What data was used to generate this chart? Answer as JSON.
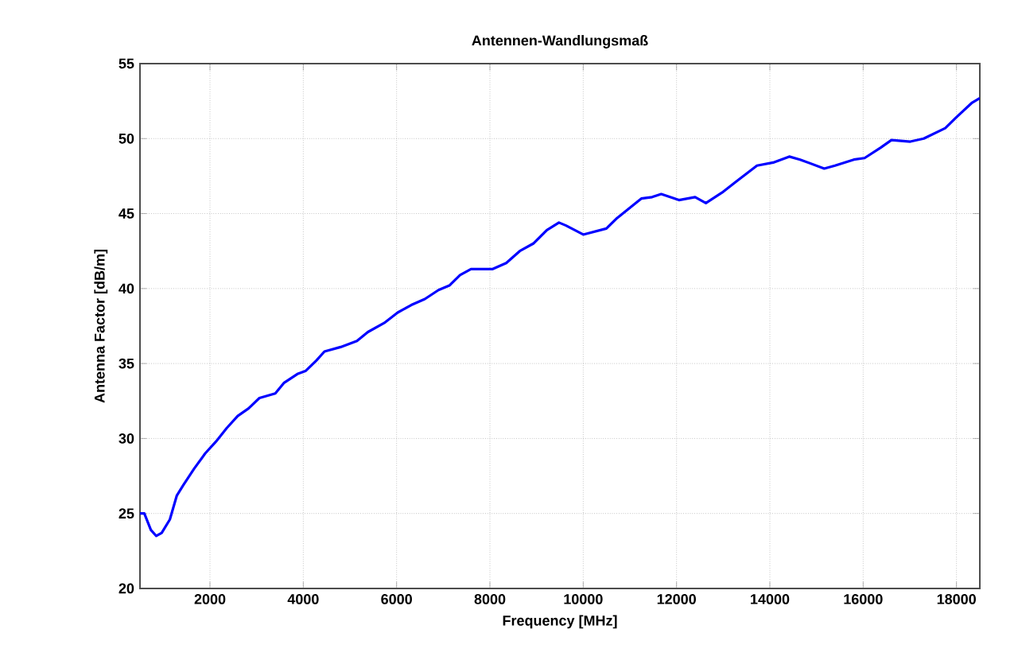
{
  "chart_data": {
    "type": "line",
    "title": "Antennen-Wandlungsmaß",
    "xlabel": "Frequency [MHz]",
    "ylabel": "Antenna Factor [dB/m]",
    "xlim": [
      500,
      18500
    ],
    "ylim": [
      20,
      55
    ],
    "xticks": [
      2000,
      4000,
      6000,
      8000,
      10000,
      12000,
      14000,
      16000,
      18000
    ],
    "yticks": [
      20,
      25,
      30,
      35,
      40,
      45,
      50,
      55
    ],
    "grid": true,
    "marker": "none",
    "line_style": "solid",
    "series": [
      {
        "color": "#0000ff",
        "x": [
          500,
          593,
          733,
          849,
          965,
          1140,
          1290,
          1430,
          1663,
          1896,
          2130,
          2360,
          2594,
          2826,
          3060,
          3400,
          3582,
          3873,
          4047,
          4280,
          4454,
          4800,
          5150,
          5385,
          5733,
          6024,
          6315,
          6606,
          6897,
          7130,
          7360,
          7594,
          8060,
          8350,
          8640,
          8930,
          9220,
          9480,
          9631,
          10000,
          10496,
          10726,
          11245,
          11476,
          11672,
          12052,
          12398,
          12629,
          12975,
          13263,
          13724,
          14070,
          14416,
          14647,
          15165,
          15396,
          15800,
          16030,
          16376,
          16606,
          17010,
          17298,
          17760,
          17990,
          18336,
          18500
        ],
        "values": [
          25.0,
          25.0,
          23.9,
          23.5,
          23.7,
          24.6,
          26.2,
          26.9,
          28.0,
          29.0,
          29.8,
          30.7,
          31.5,
          32.0,
          32.7,
          33.0,
          33.7,
          34.3,
          34.5,
          35.2,
          35.8,
          36.1,
          36.5,
          37.1,
          37.7,
          38.4,
          38.9,
          39.3,
          39.9,
          40.2,
          40.9,
          41.3,
          41.3,
          41.7,
          42.5,
          43.0,
          43.9,
          44.4,
          44.2,
          43.6,
          44.0,
          44.7,
          46.0,
          46.1,
          46.3,
          45.9,
          46.1,
          45.7,
          46.4,
          47.1,
          48.2,
          48.4,
          48.8,
          48.6,
          48.0,
          48.2,
          48.6,
          48.7,
          49.4,
          49.9,
          49.8,
          50.0,
          50.7,
          51.4,
          52.4,
          52.7
        ]
      }
    ]
  }
}
